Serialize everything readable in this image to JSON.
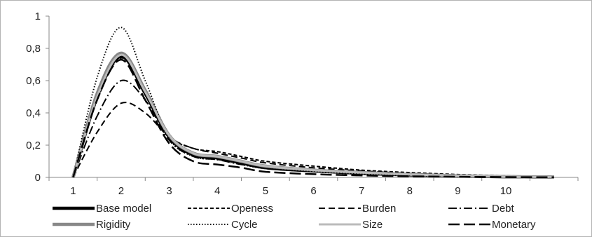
{
  "chart_data": {
    "type": "line",
    "title": "",
    "xlabel": "",
    "ylabel": "",
    "x": [
      1,
      1.5,
      2,
      2.5,
      3,
      3.5,
      4,
      4.5,
      5,
      6,
      7,
      8,
      9,
      10,
      11
    ],
    "x_tick_labels": [
      "1",
      "2",
      "3",
      "4",
      "5",
      "6",
      "7",
      "8",
      "9",
      "10"
    ],
    "y_tick_labels": [
      "0",
      "0,2",
      "0,4",
      "0,6",
      "0,8",
      "1"
    ],
    "xlim": [
      0.5,
      11.5
    ],
    "ylim": [
      0,
      1
    ],
    "grid": false,
    "legend_position": "bottom",
    "series": [
      {
        "name": "Base model",
        "color": "#000000",
        "style": "solid-thick",
        "values": [
          0,
          0.5,
          0.75,
          0.52,
          0.25,
          0.14,
          0.12,
          0.09,
          0.06,
          0.04,
          0.025,
          0.015,
          0.008,
          0.004,
          0.002
        ]
      },
      {
        "name": "Openess",
        "color": "#000000",
        "style": "short-dash",
        "values": [
          0,
          0.48,
          0.74,
          0.52,
          0.26,
          0.18,
          0.16,
          0.13,
          0.1,
          0.07,
          0.045,
          0.03,
          0.018,
          0.01,
          0.005
        ]
      },
      {
        "name": "Burden",
        "color": "#000000",
        "style": "dash",
        "values": [
          0,
          0.28,
          0.46,
          0.4,
          0.25,
          0.18,
          0.15,
          0.12,
          0.09,
          0.06,
          0.04,
          0.025,
          0.015,
          0.008,
          0.004
        ]
      },
      {
        "name": "Debt",
        "color": "#000000",
        "style": "dash-dot",
        "values": [
          0,
          0.38,
          0.6,
          0.48,
          0.23,
          0.13,
          0.11,
          0.08,
          0.06,
          0.04,
          0.025,
          0.015,
          0.008,
          0.004,
          0.002
        ]
      },
      {
        "name": "Rigidity",
        "color": "#888888",
        "style": "solid-thick",
        "values": [
          0,
          0.52,
          0.77,
          0.54,
          0.26,
          0.15,
          0.13,
          0.1,
          0.07,
          0.045,
          0.03,
          0.018,
          0.01,
          0.005,
          0.003
        ]
      },
      {
        "name": "Cycle",
        "color": "#000000",
        "style": "dot",
        "values": [
          0,
          0.62,
          0.93,
          0.6,
          0.24,
          0.13,
          0.11,
          0.08,
          0.055,
          0.035,
          0.02,
          0.012,
          0.006,
          0.003,
          0.001
        ]
      },
      {
        "name": "Size",
        "color": "#bbbbbb",
        "style": "solid",
        "values": [
          0,
          0.5,
          0.76,
          0.53,
          0.26,
          0.15,
          0.13,
          0.1,
          0.07,
          0.045,
          0.03,
          0.018,
          0.01,
          0.005,
          0.003
        ]
      },
      {
        "name": "Monetary",
        "color": "#000000",
        "style": "long-dash",
        "values": [
          0,
          0.48,
          0.73,
          0.48,
          0.21,
          0.1,
          0.08,
          0.06,
          0.035,
          0.02,
          0.012,
          0.007,
          0.004,
          0.002,
          0.001
        ]
      }
    ]
  }
}
